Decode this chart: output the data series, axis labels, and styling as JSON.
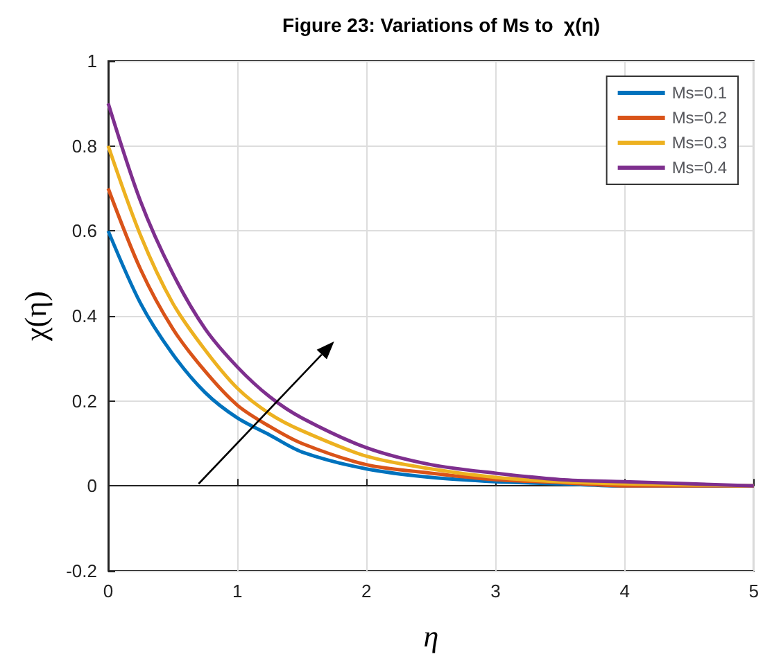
{
  "chart_data": {
    "type": "line",
    "title": "Figure 23: Variations of Ms to  χ(η)",
    "xlabel": "η",
    "ylabel": "χ(η)",
    "x": [
      0,
      0.25,
      0.5,
      0.75,
      1,
      1.25,
      1.5,
      2,
      2.5,
      3,
      3.5,
      4,
      5
    ],
    "series": [
      {
        "name": "Ms=0.1",
        "color": "#0072bd",
        "values": [
          0.6,
          0.43,
          0.31,
          0.22,
          0.16,
          0.12,
          0.08,
          0.04,
          0.02,
          0.01,
          0.005,
          0,
          0
        ]
      },
      {
        "name": "Ms=0.2",
        "color": "#d95319",
        "values": [
          0.7,
          0.51,
          0.37,
          0.27,
          0.19,
          0.14,
          0.1,
          0.05,
          0.03,
          0.015,
          0.008,
          0,
          0
        ]
      },
      {
        "name": "Ms=0.3",
        "color": "#edb120",
        "values": [
          0.8,
          0.59,
          0.43,
          0.32,
          0.23,
          0.17,
          0.13,
          0.07,
          0.04,
          0.02,
          0.01,
          0.005,
          0
        ]
      },
      {
        "name": "Ms=0.4",
        "color": "#7e2f8e",
        "values": [
          0.9,
          0.67,
          0.5,
          0.37,
          0.28,
          0.21,
          0.16,
          0.09,
          0.05,
          0.03,
          0.015,
          0.01,
          0
        ]
      }
    ],
    "xlim": [
      0,
      5
    ],
    "xticks": [
      0,
      1,
      2,
      3,
      4,
      5
    ],
    "ylim": [
      -0.2,
      1
    ],
    "yticks": [
      -0.2,
      0,
      0.2,
      0.4,
      0.6,
      0.8,
      1
    ],
    "grid": true,
    "legend": "top right",
    "marker": "none",
    "line_style": "solid"
  }
}
